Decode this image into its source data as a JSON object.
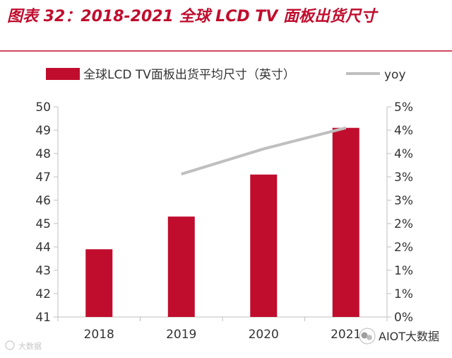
{
  "chart_data": {
    "type": "bar+line",
    "title": "图表 32：2018-2021 全球 LCD TV 面板出货尺寸",
    "categories": [
      "2018",
      "2019",
      "2020",
      "2021"
    ],
    "series": [
      {
        "name": "全球LCD TV面板出货平均尺寸（英寸）",
        "type": "bar",
        "axis": "left",
        "values": [
          43.9,
          45.3,
          47.1,
          49.1
        ]
      },
      {
        "name": "yoy",
        "type": "line",
        "axis": "right",
        "values": [
          null,
          3.4,
          4.0,
          4.5
        ]
      }
    ],
    "y_left": {
      "min": 41,
      "max": 50,
      "ticks": [
        "41",
        "42",
        "43",
        "44",
        "45",
        "46",
        "47",
        "48",
        "49",
        "50"
      ]
    },
    "y_right": {
      "min": 0,
      "max": 5,
      "ticks": [
        "0%",
        "1%",
        "1%",
        "2%",
        "2%",
        "3%",
        "3%",
        "4%",
        "4%",
        "5%"
      ]
    },
    "grid": false,
    "legend_position": "top"
  },
  "watermarks": {
    "bottom_left": "大数据",
    "bottom_right": "AIOT大数据"
  },
  "colors": {
    "bar": "#c00d2e",
    "line": "#bfbfbf",
    "title": "#c00d2e",
    "axis": "#bfbfbf",
    "text": "#333333"
  }
}
